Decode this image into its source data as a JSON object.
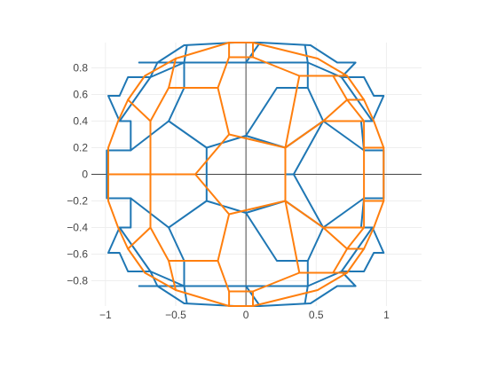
{
  "chart_data": {
    "type": "line",
    "title": "",
    "xlabel": "",
    "ylabel": "",
    "xlim": [
      -1.1,
      1.25
    ],
    "ylim": [
      -0.99,
      0.99
    ],
    "grid": true,
    "zero_lines": true,
    "x_ticks": [
      {
        "value": -1,
        "label": "−1"
      },
      {
        "value": -0.5,
        "label": "−0.5"
      },
      {
        "value": 0,
        "label": "0"
      },
      {
        "value": 0.5,
        "label": "0.5"
      },
      {
        "value": 1,
        "label": "1"
      }
    ],
    "y_ticks": [
      {
        "value": -0.8,
        "label": "−0.8"
      },
      {
        "value": -0.6,
        "label": "−0.6"
      },
      {
        "value": -0.4,
        "label": "−0.4"
      },
      {
        "value": -0.2,
        "label": "−0.2"
      },
      {
        "value": 0,
        "label": "0"
      },
      {
        "value": 0.2,
        "label": "0.2"
      },
      {
        "value": 0.4,
        "label": "0.4"
      },
      {
        "value": 0.6,
        "label": "0.6"
      },
      {
        "value": 0.8,
        "label": "0.8"
      }
    ],
    "series": [
      {
        "color": "#1f77b4",
        "segments": [
          [
            [
              -0.63,
              0.84
            ],
            [
              -0.68,
              0.73
            ],
            [
              -0.84,
              0.73
            ],
            [
              -0.9,
              0.59
            ],
            [
              -0.98,
              0.59
            ],
            [
              -0.9,
              0.4
            ],
            [
              -0.82,
              0.4
            ],
            [
              -0.82,
              0.18
            ],
            [
              -0.99,
              0.18
            ],
            [
              -0.99,
              -0.18
            ],
            [
              -0.82,
              -0.18
            ],
            [
              -0.82,
              -0.4
            ],
            [
              -0.9,
              -0.4
            ],
            [
              -0.98,
              -0.59
            ],
            [
              -0.9,
              -0.59
            ],
            [
              -0.84,
              -0.73
            ],
            [
              -0.68,
              -0.73
            ],
            [
              -0.63,
              -0.84
            ],
            [
              -0.76,
              -0.84
            ]
          ],
          [
            [
              -0.76,
              0.84
            ],
            [
              -0.63,
              0.84
            ],
            [
              -0.44,
              0.97
            ],
            [
              -0.08,
              0.99
            ],
            [
              0.1,
              0.99
            ],
            [
              0.46,
              0.97
            ],
            [
              0.65,
              0.84
            ],
            [
              0.78,
              0.84
            ],
            [
              0.68,
              0.73
            ],
            [
              0.84,
              0.73
            ],
            [
              0.91,
              0.59
            ],
            [
              0.98,
              0.59
            ],
            [
              0.9,
              0.4
            ],
            [
              0.82,
              0.4
            ],
            [
              0.84,
              0.18
            ],
            [
              0.98,
              0.18
            ],
            [
              0.98,
              -0.18
            ],
            [
              0.84,
              -0.18
            ],
            [
              0.82,
              -0.4
            ],
            [
              0.9,
              -0.4
            ],
            [
              0.98,
              -0.59
            ],
            [
              0.91,
              -0.59
            ],
            [
              0.84,
              -0.73
            ],
            [
              0.68,
              -0.73
            ],
            [
              0.78,
              -0.84
            ],
            [
              0.65,
              -0.84
            ],
            [
              0.46,
              -0.97
            ],
            [
              0.1,
              -0.99
            ],
            [
              -0.08,
              -0.99
            ],
            [
              -0.44,
              -0.97
            ],
            [
              -0.63,
              -0.84
            ]
          ],
          [
            [
              -0.9,
              0.4
            ],
            [
              -0.68,
              0.73
            ],
            [
              -0.44,
              0.84
            ],
            [
              -0.42,
              0.97
            ]
          ],
          [
            [
              0.9,
              0.4
            ],
            [
              0.68,
              0.73
            ],
            [
              0.44,
              0.84
            ],
            [
              0.42,
              0.97
            ]
          ],
          [
            [
              -0.9,
              -0.4
            ],
            [
              -0.68,
              -0.73
            ],
            [
              -0.44,
              -0.84
            ],
            [
              -0.42,
              -0.97
            ]
          ],
          [
            [
              0.9,
              -0.4
            ],
            [
              0.68,
              -0.73
            ],
            [
              0.44,
              -0.84
            ],
            [
              0.42,
              -0.97
            ]
          ],
          [
            [
              -0.76,
              0.84
            ],
            [
              -0.44,
              0.84
            ],
            [
              0.0,
              0.84
            ],
            [
              0.1,
              0.99
            ]
          ],
          [
            [
              0.0,
              0.84
            ],
            [
              0.44,
              0.84
            ]
          ],
          [
            [
              -0.76,
              -0.84
            ],
            [
              -0.44,
              -0.84
            ],
            [
              0.0,
              -0.84
            ],
            [
              0.1,
              -0.99
            ]
          ],
          [
            [
              0.0,
              -0.84
            ],
            [
              0.44,
              -0.84
            ]
          ],
          [
            [
              -0.55,
              0.4
            ],
            [
              -0.28,
              0.2
            ],
            [
              -0.28,
              -0.2
            ],
            [
              -0.55,
              -0.4
            ]
          ],
          [
            [
              0.55,
              0.4
            ],
            [
              0.28,
              0.2
            ],
            [
              0.28,
              -0.2
            ],
            [
              0.55,
              -0.4
            ]
          ],
          [
            [
              -0.28,
              0.2
            ],
            [
              0.0,
              0.29
            ],
            [
              0.28,
              0.2
            ]
          ],
          [
            [
              -0.28,
              -0.2
            ],
            [
              0.0,
              -0.29
            ],
            [
              0.28,
              -0.2
            ]
          ],
          [
            [
              -0.55,
              0.4
            ],
            [
              -0.82,
              0.18
            ]
          ],
          [
            [
              -0.55,
              -0.4
            ],
            [
              -0.82,
              -0.18
            ]
          ],
          [
            [
              0.55,
              0.4
            ],
            [
              0.84,
              0.18
            ]
          ],
          [
            [
              0.55,
              -0.4
            ],
            [
              0.84,
              -0.18
            ]
          ],
          [
            [
              -0.55,
              0.4
            ],
            [
              -0.44,
              0.65
            ],
            [
              -0.44,
              0.84
            ]
          ],
          [
            [
              0.55,
              0.4
            ],
            [
              0.44,
              0.65
            ],
            [
              0.44,
              0.84
            ]
          ],
          [
            [
              -0.55,
              -0.4
            ],
            [
              -0.44,
              -0.65
            ],
            [
              -0.44,
              -0.84
            ]
          ],
          [
            [
              0.55,
              -0.4
            ],
            [
              0.44,
              -0.65
            ],
            [
              0.44,
              -0.84
            ]
          ],
          [
            [
              0.0,
              0.29
            ],
            [
              0.22,
              0.65
            ],
            [
              0.44,
              0.65
            ]
          ],
          [
            [
              0.0,
              -0.29
            ],
            [
              0.22,
              -0.65
            ],
            [
              0.44,
              -0.65
            ]
          ],
          [
            [
              0.28,
              0.0
            ],
            [
              0.34,
              0.0
            ]
          ],
          [
            [
              0.34,
              0.0
            ],
            [
              0.55,
              0.4
            ]
          ],
          [
            [
              0.34,
              0.0
            ],
            [
              0.55,
              -0.4
            ]
          ]
        ]
      },
      {
        "color": "#ff7f0e",
        "segments": [
          [
            [
              -0.5,
              0.87
            ],
            [
              -0.12,
              0.99
            ],
            [
              0.05,
              0.99
            ],
            [
              0.51,
              0.87
            ],
            [
              0.72,
              0.74
            ],
            [
              0.84,
              0.56
            ],
            [
              0.91,
              0.4
            ],
            [
              0.98,
              0.2
            ],
            [
              0.98,
              -0.2
            ],
            [
              0.91,
              -0.4
            ],
            [
              0.84,
              -0.56
            ],
            [
              0.72,
              -0.74
            ],
            [
              0.51,
              -0.87
            ],
            [
              0.05,
              -0.99
            ],
            [
              -0.12,
              -0.99
            ],
            [
              -0.5,
              -0.87
            ],
            [
              -0.72,
              -0.74
            ],
            [
              -0.84,
              -0.56
            ],
            [
              -0.91,
              -0.4
            ],
            [
              -0.98,
              -0.2
            ],
            [
              -0.98,
              0.2
            ],
            [
              -0.91,
              0.4
            ],
            [
              -0.84,
              0.56
            ],
            [
              -0.72,
              0.74
            ],
            [
              -0.5,
              0.87
            ]
          ],
          [
            [
              -0.5,
              0.87
            ],
            [
              -0.55,
              0.65
            ],
            [
              -0.2,
              0.65
            ],
            [
              -0.12,
              0.88
            ],
            [
              -0.12,
              0.99
            ]
          ],
          [
            [
              -0.12,
              0.88
            ],
            [
              0.05,
              0.88
            ],
            [
              0.05,
              0.99
            ]
          ],
          [
            [
              0.05,
              0.88
            ],
            [
              0.38,
              0.74
            ],
            [
              0.62,
              0.74
            ],
            [
              0.72,
              0.74
            ]
          ],
          [
            [
              0.62,
              0.74
            ],
            [
              0.72,
              0.56
            ],
            [
              0.84,
              0.56
            ]
          ],
          [
            [
              0.72,
              0.56
            ],
            [
              0.84,
              0.4
            ],
            [
              0.84,
              0.2
            ],
            [
              0.98,
              0.2
            ]
          ],
          [
            [
              0.84,
              0.2
            ],
            [
              0.84,
              -0.2
            ],
            [
              0.98,
              -0.2
            ]
          ],
          [
            [
              0.84,
              -0.2
            ],
            [
              0.84,
              -0.4
            ],
            [
              0.72,
              -0.56
            ],
            [
              0.84,
              -0.56
            ]
          ],
          [
            [
              0.72,
              -0.56
            ],
            [
              0.62,
              -0.74
            ],
            [
              0.72,
              -0.74
            ]
          ],
          [
            [
              0.62,
              -0.74
            ],
            [
              0.38,
              -0.74
            ],
            [
              0.05,
              -0.88
            ],
            [
              0.05,
              -0.99
            ]
          ],
          [
            [
              0.05,
              -0.88
            ],
            [
              -0.12,
              -0.88
            ],
            [
              -0.12,
              -0.99
            ]
          ],
          [
            [
              -0.12,
              -0.88
            ],
            [
              -0.2,
              -0.65
            ],
            [
              -0.55,
              -0.65
            ],
            [
              -0.5,
              -0.87
            ]
          ],
          [
            [
              -0.55,
              -0.65
            ],
            [
              -0.68,
              -0.4
            ],
            [
              -0.84,
              -0.56
            ]
          ],
          [
            [
              -0.68,
              -0.4
            ],
            [
              -0.68,
              0.0
            ],
            [
              -0.68,
              0.4
            ],
            [
              -0.84,
              0.56
            ]
          ],
          [
            [
              -0.68,
              0.4
            ],
            [
              -0.55,
              0.65
            ]
          ],
          [
            [
              -0.68,
              0.0
            ],
            [
              -0.98,
              0.0
            ]
          ],
          [
            [
              -0.68,
              0.0
            ],
            [
              -0.36,
              0.0
            ],
            [
              -0.12,
              0.3
            ],
            [
              -0.2,
              0.65
            ]
          ],
          [
            [
              -0.36,
              0.0
            ],
            [
              -0.12,
              -0.3
            ],
            [
              -0.2,
              -0.65
            ]
          ],
          [
            [
              -0.12,
              0.3
            ],
            [
              0.28,
              0.2
            ],
            [
              0.38,
              0.74
            ]
          ],
          [
            [
              -0.12,
              -0.3
            ],
            [
              0.28,
              -0.2
            ],
            [
              0.38,
              -0.74
            ]
          ],
          [
            [
              0.28,
              0.2
            ],
            [
              0.28,
              -0.2
            ]
          ],
          [
            [
              0.28,
              0.2
            ],
            [
              0.55,
              0.4
            ],
            [
              0.72,
              0.56
            ]
          ],
          [
            [
              0.28,
              -0.2
            ],
            [
              0.55,
              -0.4
            ],
            [
              0.72,
              -0.56
            ]
          ],
          [
            [
              0.55,
              0.4
            ],
            [
              0.84,
              0.4
            ]
          ],
          [
            [
              0.55,
              -0.4
            ],
            [
              0.84,
              -0.4
            ]
          ]
        ]
      }
    ]
  }
}
